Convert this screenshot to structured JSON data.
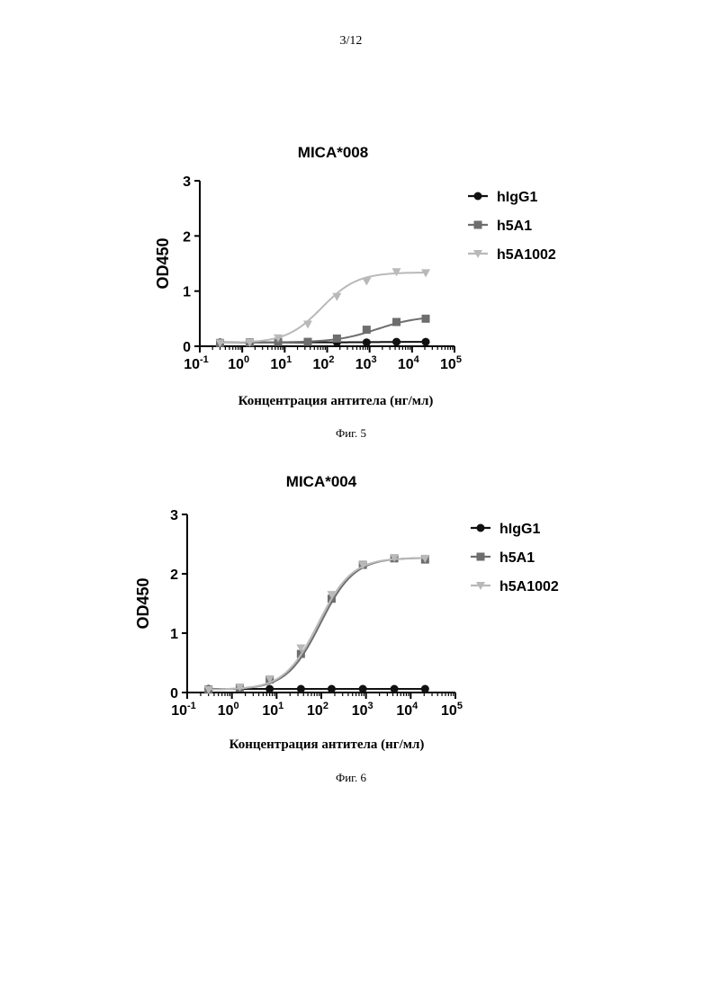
{
  "page_number": "3/12",
  "chart_data": [
    {
      "type": "line",
      "title": "MICA*008",
      "ylabel": "OD450",
      "xlabel": "Концентрация антитела (нг/мл)",
      "caption": "Фиг. 5",
      "xscale": "log",
      "xlim": [
        0.1,
        100000
      ],
      "ylim": [
        0,
        3
      ],
      "yticks": [
        "0",
        "1",
        "2",
        "3"
      ],
      "xticks": [
        {
          "base": "10",
          "exp": "-1"
        },
        {
          "base": "10",
          "exp": "0"
        },
        {
          "base": "10",
          "exp": "1"
        },
        {
          "base": "10",
          "exp": "2"
        },
        {
          "base": "10",
          "exp": "3"
        },
        {
          "base": "10",
          "exp": "4"
        },
        {
          "base": "10",
          "exp": "5"
        }
      ],
      "legend_position": "right",
      "x": [
        0.3,
        1.5,
        7,
        35,
        170,
        850,
        4300,
        21000
      ],
      "series": [
        {
          "name": "hIgG1",
          "marker": "circle",
          "color": "#111111",
          "values": [
            0.07,
            0.07,
            0.07,
            0.07,
            0.07,
            0.07,
            0.08,
            0.08
          ],
          "curve": {
            "bottom": 0.07,
            "top": 0.08,
            "ec50": 1000,
            "hill": 1.0
          }
        },
        {
          "name": "h5A1",
          "marker": "square",
          "color": "#6e6e6e",
          "values": [
            0.06,
            0.07,
            0.08,
            0.08,
            0.14,
            0.3,
            0.44,
            0.5
          ],
          "curve": {
            "bottom": 0.07,
            "top": 0.55,
            "ec50": 1500,
            "hill": 0.9
          }
        },
        {
          "name": "h5A1002",
          "marker": "triangle-down",
          "color": "#b9b9b9",
          "values": [
            0.06,
            0.07,
            0.15,
            0.4,
            0.9,
            1.18,
            1.35,
            1.33
          ],
          "curve": {
            "bottom": 0.06,
            "top": 1.34,
            "ec50": 75,
            "hill": 1.05
          }
        }
      ]
    },
    {
      "type": "line",
      "title": "MICA*004",
      "ylabel": "OD450",
      "xlabel": "Концентрация антитела (нг/мл)",
      "caption": "Фиг. 6",
      "xscale": "log",
      "xlim": [
        0.1,
        100000
      ],
      "ylim": [
        0,
        3
      ],
      "yticks": [
        "0",
        "1",
        "2",
        "3"
      ],
      "xticks": [
        {
          "base": "10",
          "exp": "-1"
        },
        {
          "base": "10",
          "exp": "0"
        },
        {
          "base": "10",
          "exp": "1"
        },
        {
          "base": "10",
          "exp": "2"
        },
        {
          "base": "10",
          "exp": "3"
        },
        {
          "base": "10",
          "exp": "4"
        },
        {
          "base": "10",
          "exp": "5"
        }
      ],
      "legend_position": "right",
      "x": [
        0.3,
        1.5,
        7,
        35,
        170,
        850,
        4300,
        21000
      ],
      "series": [
        {
          "name": "hIgG1",
          "marker": "circle",
          "color": "#111111",
          "values": [
            0.06,
            0.06,
            0.06,
            0.06,
            0.06,
            0.06,
            0.06,
            0.06
          ],
          "curve": {
            "bottom": 0.06,
            "top": 0.06,
            "ec50": 100,
            "hill": 1.0
          }
        },
        {
          "name": "h5A1",
          "marker": "square",
          "color": "#6e6e6e",
          "values": [
            0.05,
            0.08,
            0.22,
            0.65,
            1.58,
            2.15,
            2.26,
            2.24
          ],
          "curve": {
            "bottom": 0.05,
            "top": 2.27,
            "ec50": 95,
            "hill": 1.15
          }
        },
        {
          "name": "h5A1002",
          "marker": "triangle-down",
          "color": "#b9b9b9",
          "values": [
            0.05,
            0.09,
            0.23,
            0.75,
            1.65,
            2.15,
            2.27,
            2.26
          ],
          "curve": {
            "bottom": 0.05,
            "top": 2.27,
            "ec50": 85,
            "hill": 1.15
          }
        }
      ]
    }
  ]
}
